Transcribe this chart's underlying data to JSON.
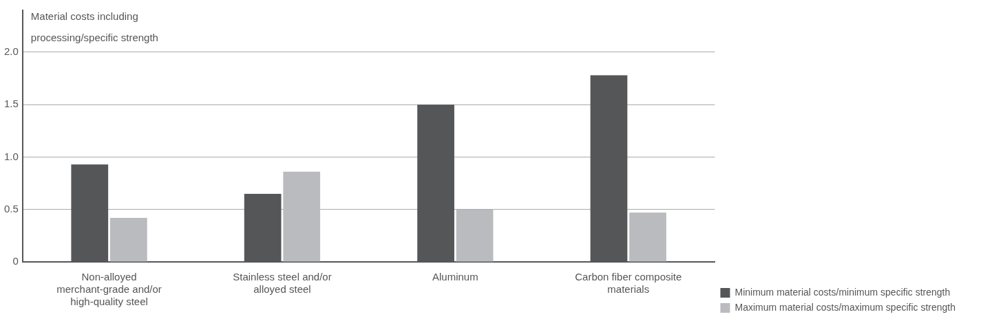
{
  "chart_data": {
    "type": "bar",
    "ylabel": "Material costs including processing/specific strength",
    "categories": [
      "Non-alloyed merchant-grade and/or high-quality steel",
      "Stainless steel and/or alloyed steel",
      "Aluminum",
      "Carbon fiber composite materials"
    ],
    "series": [
      {
        "name": "Minimum material costs/minimum specific strength",
        "color": "#555658",
        "values": [
          0.93,
          0.65,
          1.5,
          1.78
        ]
      },
      {
        "name": "Maximum material costs/maximum specific strength",
        "color": "#babbbe",
        "values": [
          0.42,
          0.86,
          0.5,
          0.47
        ]
      }
    ],
    "ylim": [
      0,
      2.4
    ],
    "yticks": [
      {
        "value": 0,
        "label": "0"
      },
      0.5,
      {
        "value": 1,
        "label": "1.0"
      },
      1.5,
      {
        "value": 2,
        "label": "2.0"
      }
    ],
    "grid": "y",
    "legend": "right"
  }
}
